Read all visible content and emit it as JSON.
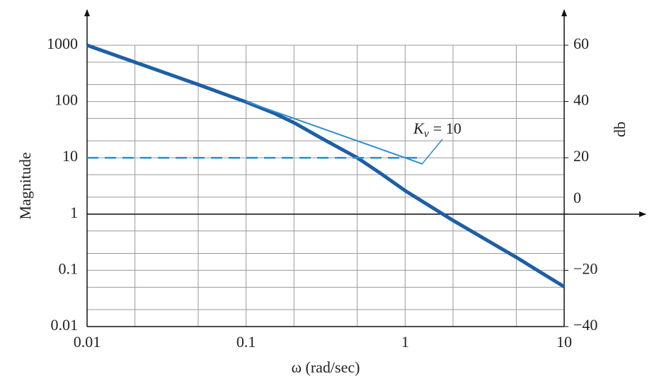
{
  "chart_data": {
    "type": "line",
    "x_label": "ω (rad/sec)",
    "y_label": "Magnitude",
    "y2_label": "db",
    "xscale": "log",
    "yscale": "log",
    "xlim": [
      0.01,
      10
    ],
    "xticks": [
      0.01,
      0.1,
      1,
      10
    ],
    "ylim": [
      0.01,
      1000
    ],
    "yticks": [
      0.01,
      0.1,
      1,
      10,
      100,
      1000
    ],
    "y2lim": [
      -40,
      60
    ],
    "y2ticks": [
      {
        "value": -40,
        "label": "−40"
      },
      {
        "value": -20,
        "label": "−20"
      },
      0,
      20,
      40,
      60
    ],
    "x_minor_grid": [
      0.02,
      0.05,
      0.2,
      0.5,
      2,
      5
    ],
    "y_minor_grid": [
      0.02,
      0.05,
      0.2,
      0.5,
      2,
      5,
      20,
      50,
      200,
      500
    ],
    "grid": true,
    "series": [
      {
        "color": "#1d5fa6",
        "width": 5,
        "dash": false,
        "x": [
          0.01,
          0.02,
          0.05,
          0.1,
          0.15,
          0.2,
          0.3,
          0.5,
          0.7,
          1,
          2,
          5,
          10
        ],
        "values": [
          1000,
          500,
          200,
          98,
          62,
          42,
          22,
          10,
          5.3,
          2.6,
          0.77,
          0.17,
          0.051
        ]
      },
      {
        "color": "#2b8fd0",
        "width": 2,
        "dash": false,
        "x": [
          0.1,
          1.29
        ],
        "values": [
          100,
          7.75
        ]
      },
      {
        "color": "#2b8fd0",
        "width": 2.5,
        "dash": true,
        "x": [
          0.01,
          1.29
        ],
        "values": [
          10,
          10
        ]
      }
    ],
    "annotation": {
      "symbol": "K",
      "subscript": "v",
      "text": "= 10"
    }
  }
}
